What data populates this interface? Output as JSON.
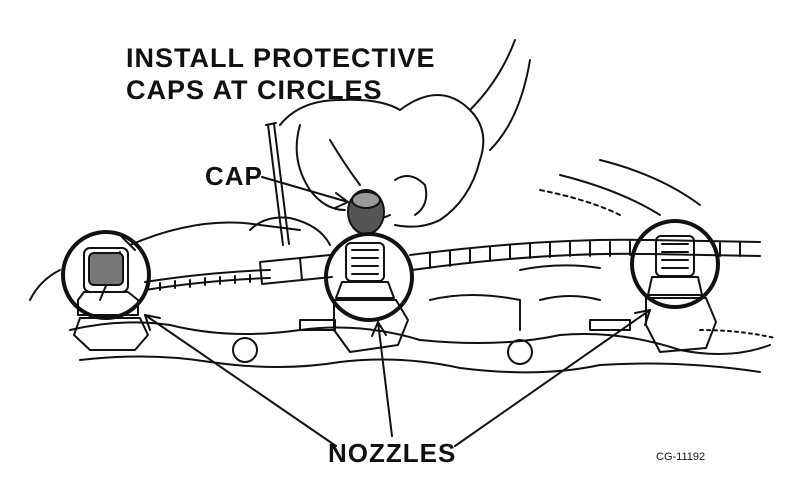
{
  "instruction": {
    "line1": "INSTALL PROTECTIVE",
    "line2": "CAPS AT CIRCLES"
  },
  "labels": {
    "cap": "CAP",
    "nozzles": "NOZZLES"
  },
  "figure_code": "CG-11192",
  "colors": {
    "ink": "#111111",
    "paper": "#ffffff"
  }
}
